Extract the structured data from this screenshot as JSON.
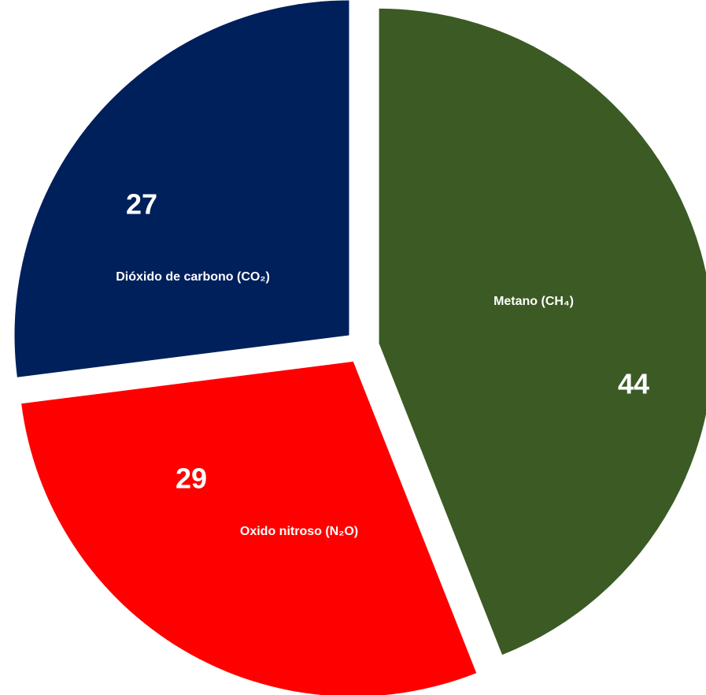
{
  "chart_data": {
    "type": "pie",
    "categories": [
      "Metano (CH₄)",
      "Oxido nitroso (N₂O)",
      "Dióxido de carbono (CO₂)"
    ],
    "values": [
      44,
      29,
      27
    ],
    "colors": [
      "#3b5a24",
      "#ff0000",
      "#00205b"
    ]
  }
}
